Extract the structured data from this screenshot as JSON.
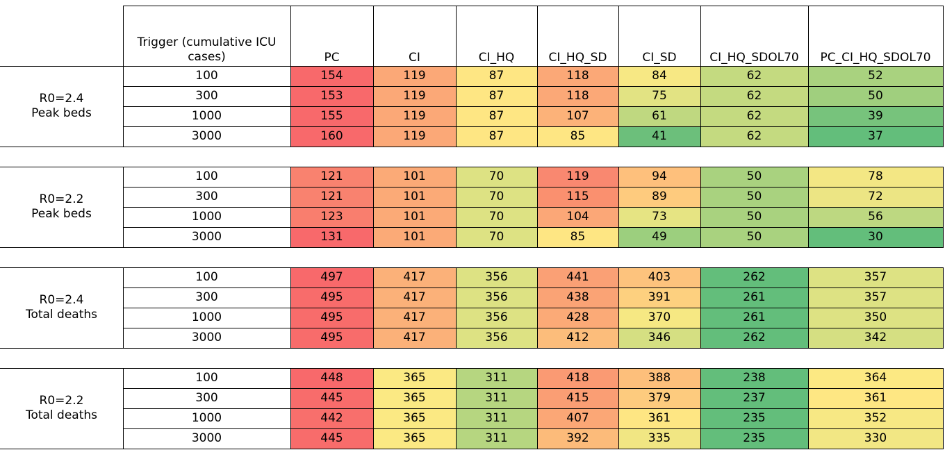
{
  "header": {
    "trigger_label": "Trigger (cumulative ICU cases)",
    "columns": [
      "PC",
      "CI",
      "CI_HQ",
      "CI_HQ_SD",
      "CI_SD",
      "CI_HQ_SDOL70",
      "PC_CI_HQ_SDOL70"
    ]
  },
  "triggers": [
    "100",
    "300",
    "1000",
    "3000"
  ],
  "blocks": [
    {
      "label_line1": "R0=2.4",
      "label_line2": "Peak beds",
      "rows": [
        [
          "154",
          "119",
          "87",
          "118",
          "84",
          "62",
          "52"
        ],
        [
          "153",
          "119",
          "87",
          "118",
          "75",
          "62",
          "50"
        ],
        [
          "155",
          "119",
          "87",
          "107",
          "61",
          "62",
          "39"
        ],
        [
          "160",
          "119",
          "87",
          "85",
          "41",
          "62",
          "37"
        ]
      ],
      "colors": [
        [
          "#f8696b",
          "#fba877",
          "#fee683",
          "#fba877",
          "#f7e884",
          "#c4da80",
          "#a9d27f"
        ],
        [
          "#f8696b",
          "#fba877",
          "#fee683",
          "#fba877",
          "#e2e383",
          "#c4da80",
          "#a0cf7e"
        ],
        [
          "#f8696b",
          "#fba877",
          "#fee683",
          "#fcb279",
          "#bfd880",
          "#c4da80",
          "#77c37c"
        ],
        [
          "#f8696b",
          "#fba877",
          "#fee683",
          "#fee683",
          "#6cbf7b",
          "#c4da80",
          "#63be7b"
        ]
      ]
    },
    {
      "label_line1": "R0=2.2",
      "label_line2": "Peak beds",
      "rows": [
        [
          "121",
          "101",
          "70",
          "119",
          "94",
          "50",
          "78"
        ],
        [
          "121",
          "101",
          "70",
          "115",
          "89",
          "50",
          "72"
        ],
        [
          "123",
          "101",
          "70",
          "104",
          "73",
          "50",
          "56"
        ],
        [
          "131",
          "101",
          "70",
          "85",
          "49",
          "50",
          "30"
        ]
      ],
      "colors": [
        [
          "#f9826f",
          "#fbaa77",
          "#dde283",
          "#f98870",
          "#fec07c",
          "#a9d27f",
          "#f3e784"
        ],
        [
          "#f9826f",
          "#fbaa77",
          "#dde283",
          "#fa906f",
          "#fecb7e",
          "#a9d27f",
          "#ece584"
        ],
        [
          "#f97e6e",
          "#fbaa77",
          "#dde283",
          "#fba777",
          "#e6e483",
          "#a9d27f",
          "#bdd881"
        ],
        [
          "#f8696b",
          "#fbaa77",
          "#dde283",
          "#fee683",
          "#9ccf7e",
          "#a9d27f",
          "#63be7b"
        ]
      ]
    },
    {
      "label_line1": "R0=2.4",
      "label_line2": "Total deaths",
      "rows": [
        [
          "497",
          "417",
          "356",
          "441",
          "403",
          "262",
          "357"
        ],
        [
          "495",
          "417",
          "356",
          "438",
          "391",
          "261",
          "357"
        ],
        [
          "495",
          "417",
          "356",
          "428",
          "370",
          "261",
          "350"
        ],
        [
          "495",
          "417",
          "356",
          "412",
          "346",
          "262",
          "342"
        ]
      ],
      "colors": [
        [
          "#f8696b",
          "#fbb179",
          "#dde283",
          "#faa075",
          "#fdc37d",
          "#63be7b",
          "#dde283"
        ],
        [
          "#f86c6b",
          "#fbb179",
          "#dde283",
          "#faa375",
          "#fdd07f",
          "#63be7b",
          "#dde283"
        ],
        [
          "#f86c6b",
          "#fbb179",
          "#dde283",
          "#fbaa77",
          "#f6e883",
          "#63be7b",
          "#dde283"
        ],
        [
          "#f86c6b",
          "#fbb179",
          "#dde283",
          "#fcbd7b",
          "#d5df82",
          "#63be7b",
          "#d5df82"
        ]
      ]
    },
    {
      "label_line1": "R0=2.2",
      "label_line2": "Total deaths",
      "rows": [
        [
          "448",
          "365",
          "311",
          "418",
          "388",
          "238",
          "364"
        ],
        [
          "445",
          "365",
          "311",
          "415",
          "379",
          "237",
          "361"
        ],
        [
          "442",
          "365",
          "311",
          "407",
          "361",
          "235",
          "352"
        ],
        [
          "445",
          "365",
          "311",
          "392",
          "335",
          "235",
          "330"
        ]
      ],
      "colors": [
        [
          "#f8696b",
          "#fbe983",
          "#b6d680",
          "#fa9a73",
          "#fdbf7b",
          "#63be7b",
          "#fce983"
        ],
        [
          "#f86c6b",
          "#fbe983",
          "#b6d680",
          "#fa9e74",
          "#fdcb7e",
          "#63be7b",
          "#fee783"
        ],
        [
          "#f86f6c",
          "#fbe983",
          "#b6d680",
          "#fba776",
          "#fee683",
          "#63be7b",
          "#f7e884"
        ],
        [
          "#f86c6b",
          "#fbe983",
          "#b6d680",
          "#fcbb7a",
          "#f1e683",
          "#63be7b",
          "#f2e784"
        ]
      ]
    }
  ]
}
